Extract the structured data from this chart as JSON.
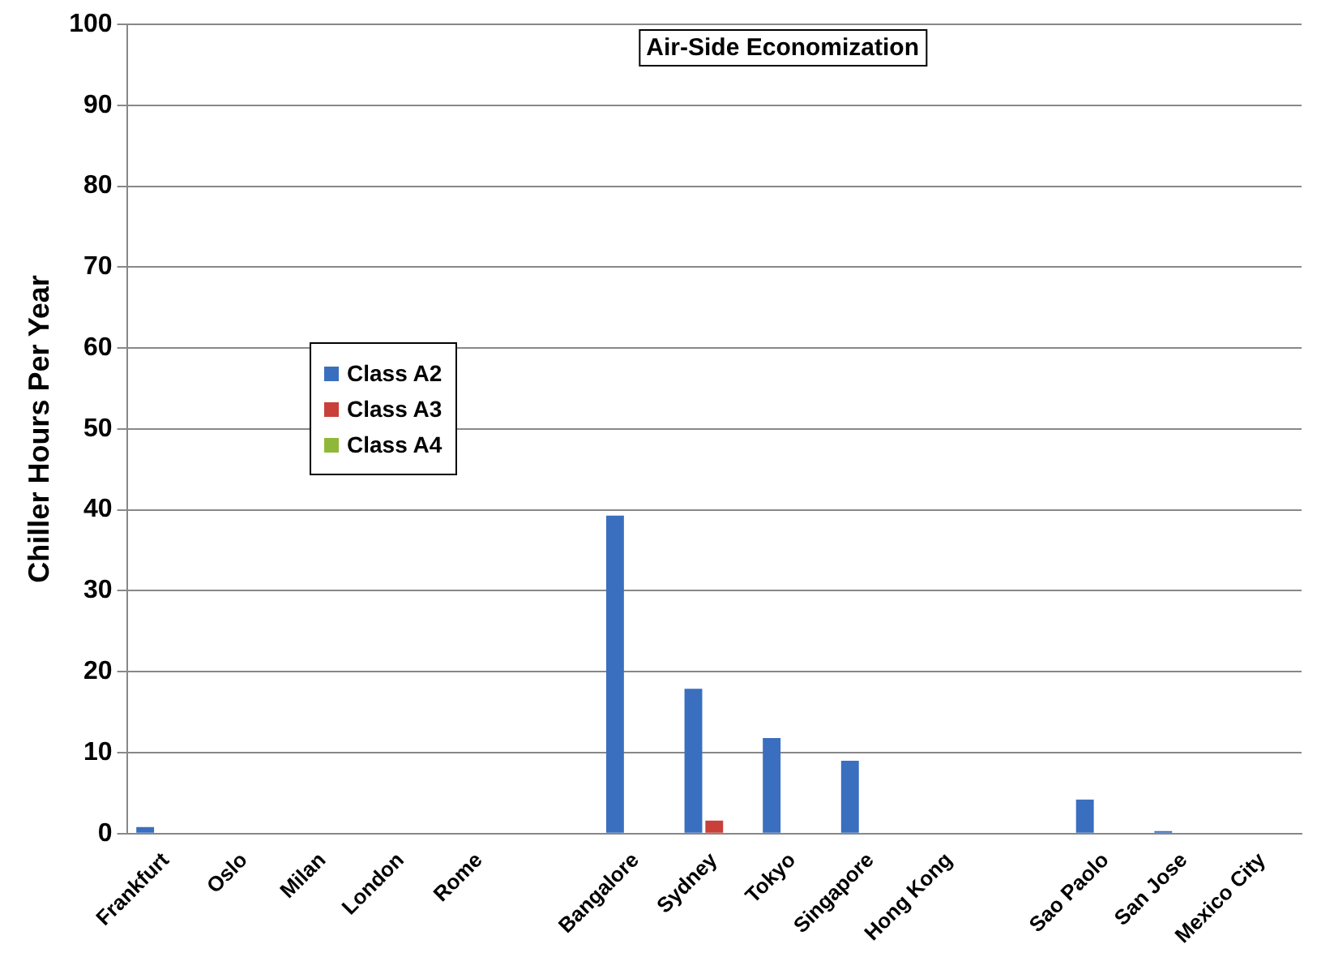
{
  "chart_data": {
    "type": "bar",
    "title": "Air-Side Economization",
    "ylabel": "Chiller Hours Per Year",
    "categories": [
      "Frankfurt",
      "Oslo",
      "Milan",
      "London",
      "Rome",
      null,
      "Bangalore",
      "Sydney",
      "Tokyo",
      "Singapore",
      "Hong Kong",
      null,
      "Sao Paolo",
      "San Jose",
      "Mexico City"
    ],
    "series": [
      {
        "name": "Class A2",
        "color": "#3a6fbf",
        "values": [
          0.8,
          0,
          0,
          0,
          0,
          null,
          39.3,
          17.9,
          11.8,
          9,
          0,
          null,
          4.2,
          0.3,
          0
        ]
      },
      {
        "name": "Class A3",
        "color": "#c9403a",
        "values": [
          0,
          0,
          0,
          0,
          0,
          null,
          0,
          1.6,
          0,
          0,
          0,
          null,
          0,
          0,
          0
        ]
      },
      {
        "name": "Class A4",
        "color": "#8fb83a",
        "values": [
          0,
          0,
          0,
          0,
          0,
          null,
          0,
          0,
          0,
          0,
          0,
          null,
          0,
          0,
          0
        ]
      }
    ],
    "ylim": [
      0,
      100
    ],
    "yticks": [
      0,
      10,
      20,
      30,
      40,
      50,
      60,
      70,
      80,
      90,
      100
    ],
    "grid": "y",
    "legend": "left"
  }
}
